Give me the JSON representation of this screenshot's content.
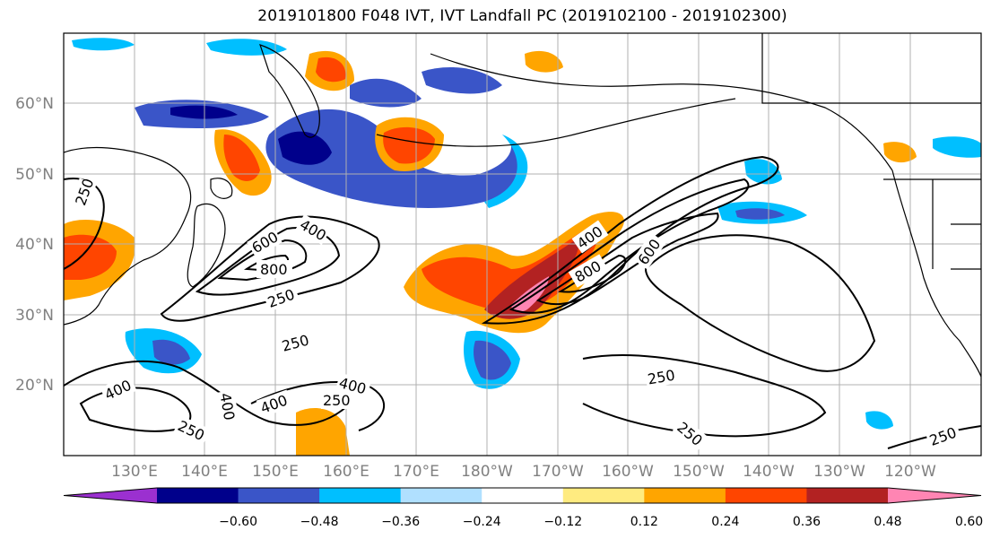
{
  "title": "2019101800 F048 IVT, IVT Landfall PC (2019102100 - 2019102300)",
  "lat_labels": [
    "60°N",
    "50°N",
    "40°N",
    "30°N",
    "20°N"
  ],
  "lon_labels": [
    "130°E",
    "140°E",
    "150°E",
    "160°E",
    "170°E",
    "180°W",
    "170°W",
    "160°W",
    "150°W",
    "140°W",
    "130°W",
    "120°W"
  ],
  "colorbar": {
    "colors": [
      "#9b30d0",
      "#00008b",
      "#3a55c8",
      "#00bfff",
      "#b0e0ff",
      "#ffffff",
      "#ffeb80",
      "#ffa500",
      "#ff4500",
      "#b22222",
      "#ff85b3"
    ],
    "ticks": [
      "−0.60",
      "−0.48",
      "−0.36",
      "−0.24",
      "−0.12",
      "0.12",
      "0.24",
      "0.36",
      "0.48",
      "0.60"
    ]
  },
  "contour_labels": [
    "250",
    "400",
    "600",
    "800",
    "250",
    "250",
    "400",
    "600",
    "800",
    "400",
    "400",
    "250",
    "400",
    "250",
    "400",
    "250",
    "250",
    "250"
  ]
}
